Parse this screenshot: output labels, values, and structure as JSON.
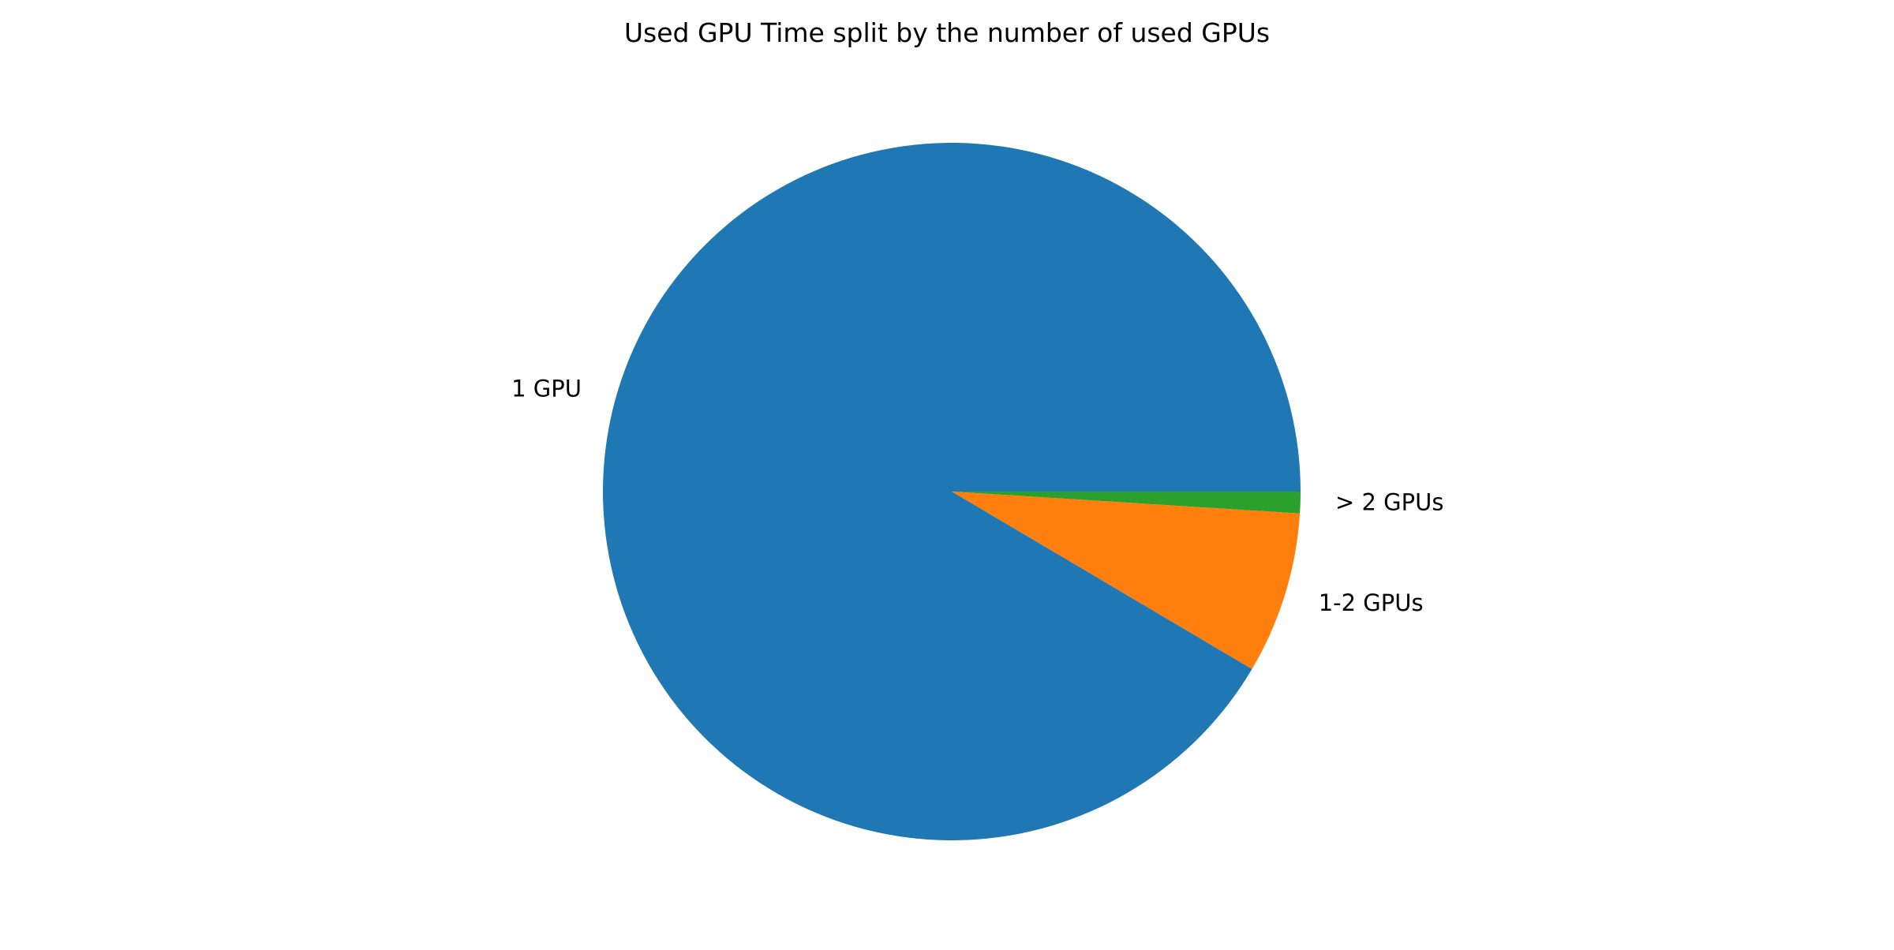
{
  "chart_data": {
    "type": "pie",
    "title": "Used GPU Time split by the number of used GPUs",
    "start_angle_deg": 0,
    "direction": "clockwise",
    "slices": [
      {
        "label": "> 2 GPUs",
        "value": 1.0,
        "color": "#2ca02c"
      },
      {
        "label": "1-2 GPUs",
        "value": 7.5,
        "color": "#ff7f0e"
      },
      {
        "label": "1 GPU",
        "value": 91.5,
        "color": "#1f77b4"
      }
    ],
    "legend": "none"
  }
}
